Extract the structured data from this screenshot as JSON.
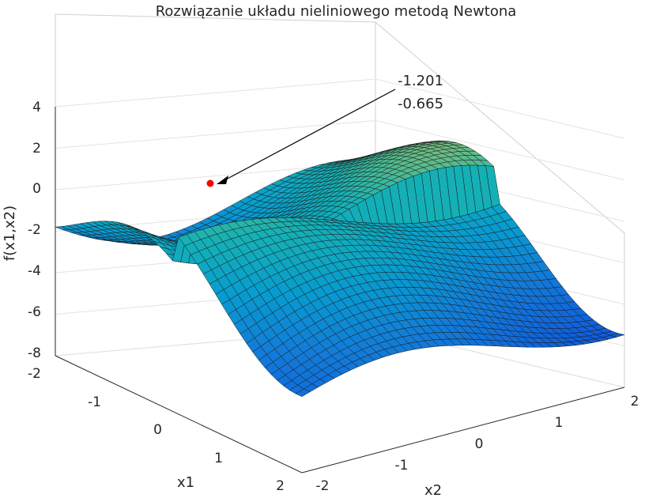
{
  "chart_data": {
    "type": "surface",
    "title": "Rozwiązanie układu nieliniowego metodą Newtona",
    "xlabel": "x1",
    "ylabel": "x2",
    "zlabel": "f(x1,x2)",
    "x1_ticks": [
      "-2",
      "-1",
      "0",
      "1",
      "2"
    ],
    "x2_ticks": [
      "-2",
      "-1",
      "0",
      "1",
      "2"
    ],
    "z_ticks": [
      "4",
      "2",
      "0",
      "-2",
      "-4",
      "-6",
      "-8"
    ],
    "x1_range": [
      -2,
      2
    ],
    "x2_range": [
      -2,
      2
    ],
    "zlim": [
      -8,
      4
    ],
    "grid": true,
    "colormap": "parula",
    "annotation": {
      "line1": "-1.201",
      "line2": "-0.665",
      "point": {
        "x1": -1.201,
        "x2": -0.665
      },
      "marker_color": "#ff0000"
    }
  }
}
